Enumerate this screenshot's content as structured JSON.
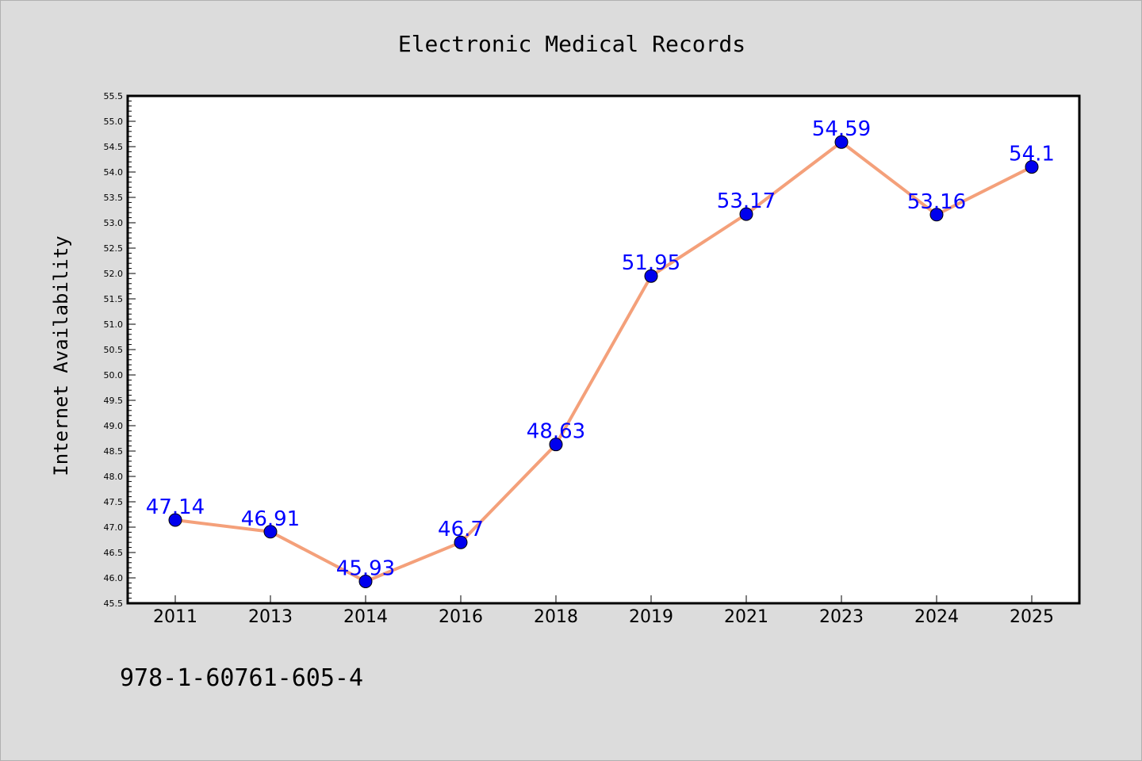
{
  "chart_data": {
    "type": "line",
    "title": "Electronic Medical Records",
    "xlabel": "",
    "ylabel": "Internet Availability",
    "categories": [
      "2011",
      "2013",
      "2014",
      "2016",
      "2018",
      "2019",
      "2021",
      "2023",
      "2024",
      "2025"
    ],
    "series": [
      {
        "values": [
          47.14,
          46.91,
          45.93,
          46.7,
          48.63,
          51.95,
          53.17,
          54.59,
          53.16,
          54.1
        ],
        "labels": [
          "47.14",
          "46.91",
          "45.93",
          "46.7",
          "48.63",
          "51.95",
          "53.17",
          "54.59",
          "53.16",
          "54.1"
        ]
      }
    ],
    "ylim": [
      45.5,
      55.5
    ],
    "yticks": [
      "45.5",
      "46.0",
      "46.5",
      "47.0",
      "47.5",
      "48.0",
      "48.5",
      "49.0",
      "49.5",
      "50.0",
      "50.5",
      "51.0",
      "51.5",
      "52.0",
      "52.5",
      "53.0",
      "53.5",
      "54.0",
      "54.5",
      "55.0",
      "55.5"
    ],
    "grid": false,
    "colors": {
      "line": "#f4a07a",
      "marker": "#0000ee",
      "label": "#0000ff",
      "background": "#dcdcdc",
      "plot_background": "#ffffff"
    }
  },
  "footnote": "978-1-60761-605-4"
}
